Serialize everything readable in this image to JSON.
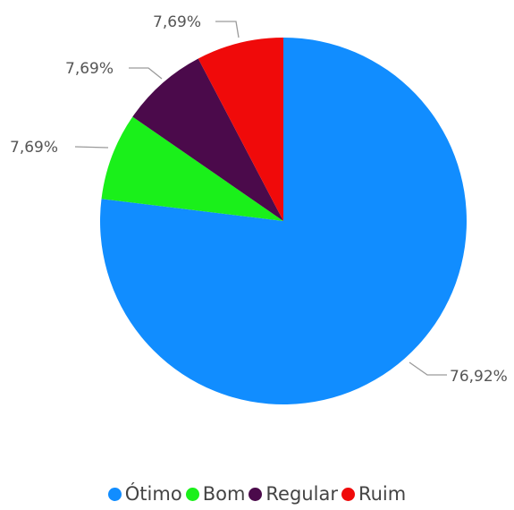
{
  "chart_data": {
    "type": "pie",
    "title": "",
    "categories": [
      "Ótimo",
      "Bom",
      "Regular",
      "Ruim"
    ],
    "values": [
      76.92,
      7.69,
      7.69,
      7.69
    ],
    "labels": [
      "76,92%",
      "7,69%",
      "7,69%",
      "7,69%"
    ],
    "colors": [
      "#118DFF",
      "#1AF01A",
      "#4B0A4B",
      "#F00A0A"
    ],
    "start_angle_deg": 0,
    "direction": "clockwise",
    "legend_position": "bottom"
  }
}
